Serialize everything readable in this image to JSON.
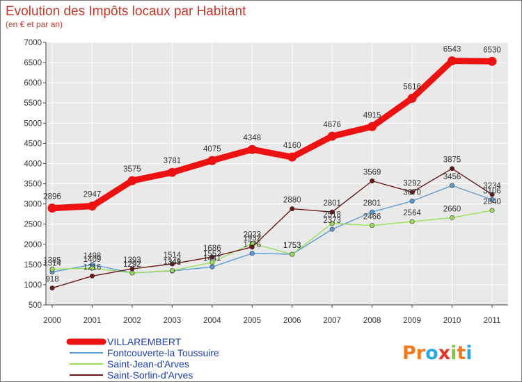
{
  "chart_data": {
    "type": "line",
    "title": "Evolution des Impôts locaux par Habitant",
    "subtitle": "(en € et par an)",
    "categories": [
      "2000",
      "2001",
      "2002",
      "2003",
      "2004",
      "2005",
      "2006",
      "2007",
      "2008",
      "2009",
      "2010",
      "2011"
    ],
    "ylim": [
      500,
      7000
    ],
    "yticks": [
      500,
      1000,
      1500,
      2000,
      2500,
      3000,
      3500,
      4000,
      4500,
      5000,
      5500,
      6000,
      6500,
      7000
    ],
    "grid": true,
    "legend_position": "bottom-left",
    "series": [
      {
        "name": "VILLAREMBERT",
        "color": "#ee1111",
        "width": "thick",
        "values": [
          2896,
          2947,
          3575,
          3781,
          4075,
          4348,
          4160,
          4676,
          4915,
          5616,
          6543,
          6530
        ]
      },
      {
        "name": "Fontcouverte-la Toussuire",
        "color": "#5b9bd5",
        "width": "thin",
        "values": [
          1314,
          1498,
          1292,
          1341,
          1441,
          1776,
          1753,
          2373,
          2801,
          3070,
          3456,
          3106
        ]
      },
      {
        "name": "Saint-Jean-d'Arves",
        "color": "#99e05a",
        "width": "thin",
        "values": [
          1385,
          1409,
          1292,
          1349,
          1552,
          2023,
          1753,
          2518,
          2466,
          2564,
          2660,
          2840
        ]
      },
      {
        "name": "Saint-Sorlin-d'Arves",
        "color": "#6b1818",
        "width": "thin",
        "values": [
          918,
          1216,
          1393,
          1514,
          1686,
          1932,
          2880,
          2801,
          3569,
          3292,
          3875,
          3234
        ]
      }
    ]
  },
  "logo": {
    "text": "Proxiti",
    "letter_colors": [
      "#f07a1c",
      "#f07a1c",
      "#2aa8e0",
      "#e8342c",
      "#82c341",
      "#f07a1c",
      "#2aa8e0"
    ]
  }
}
